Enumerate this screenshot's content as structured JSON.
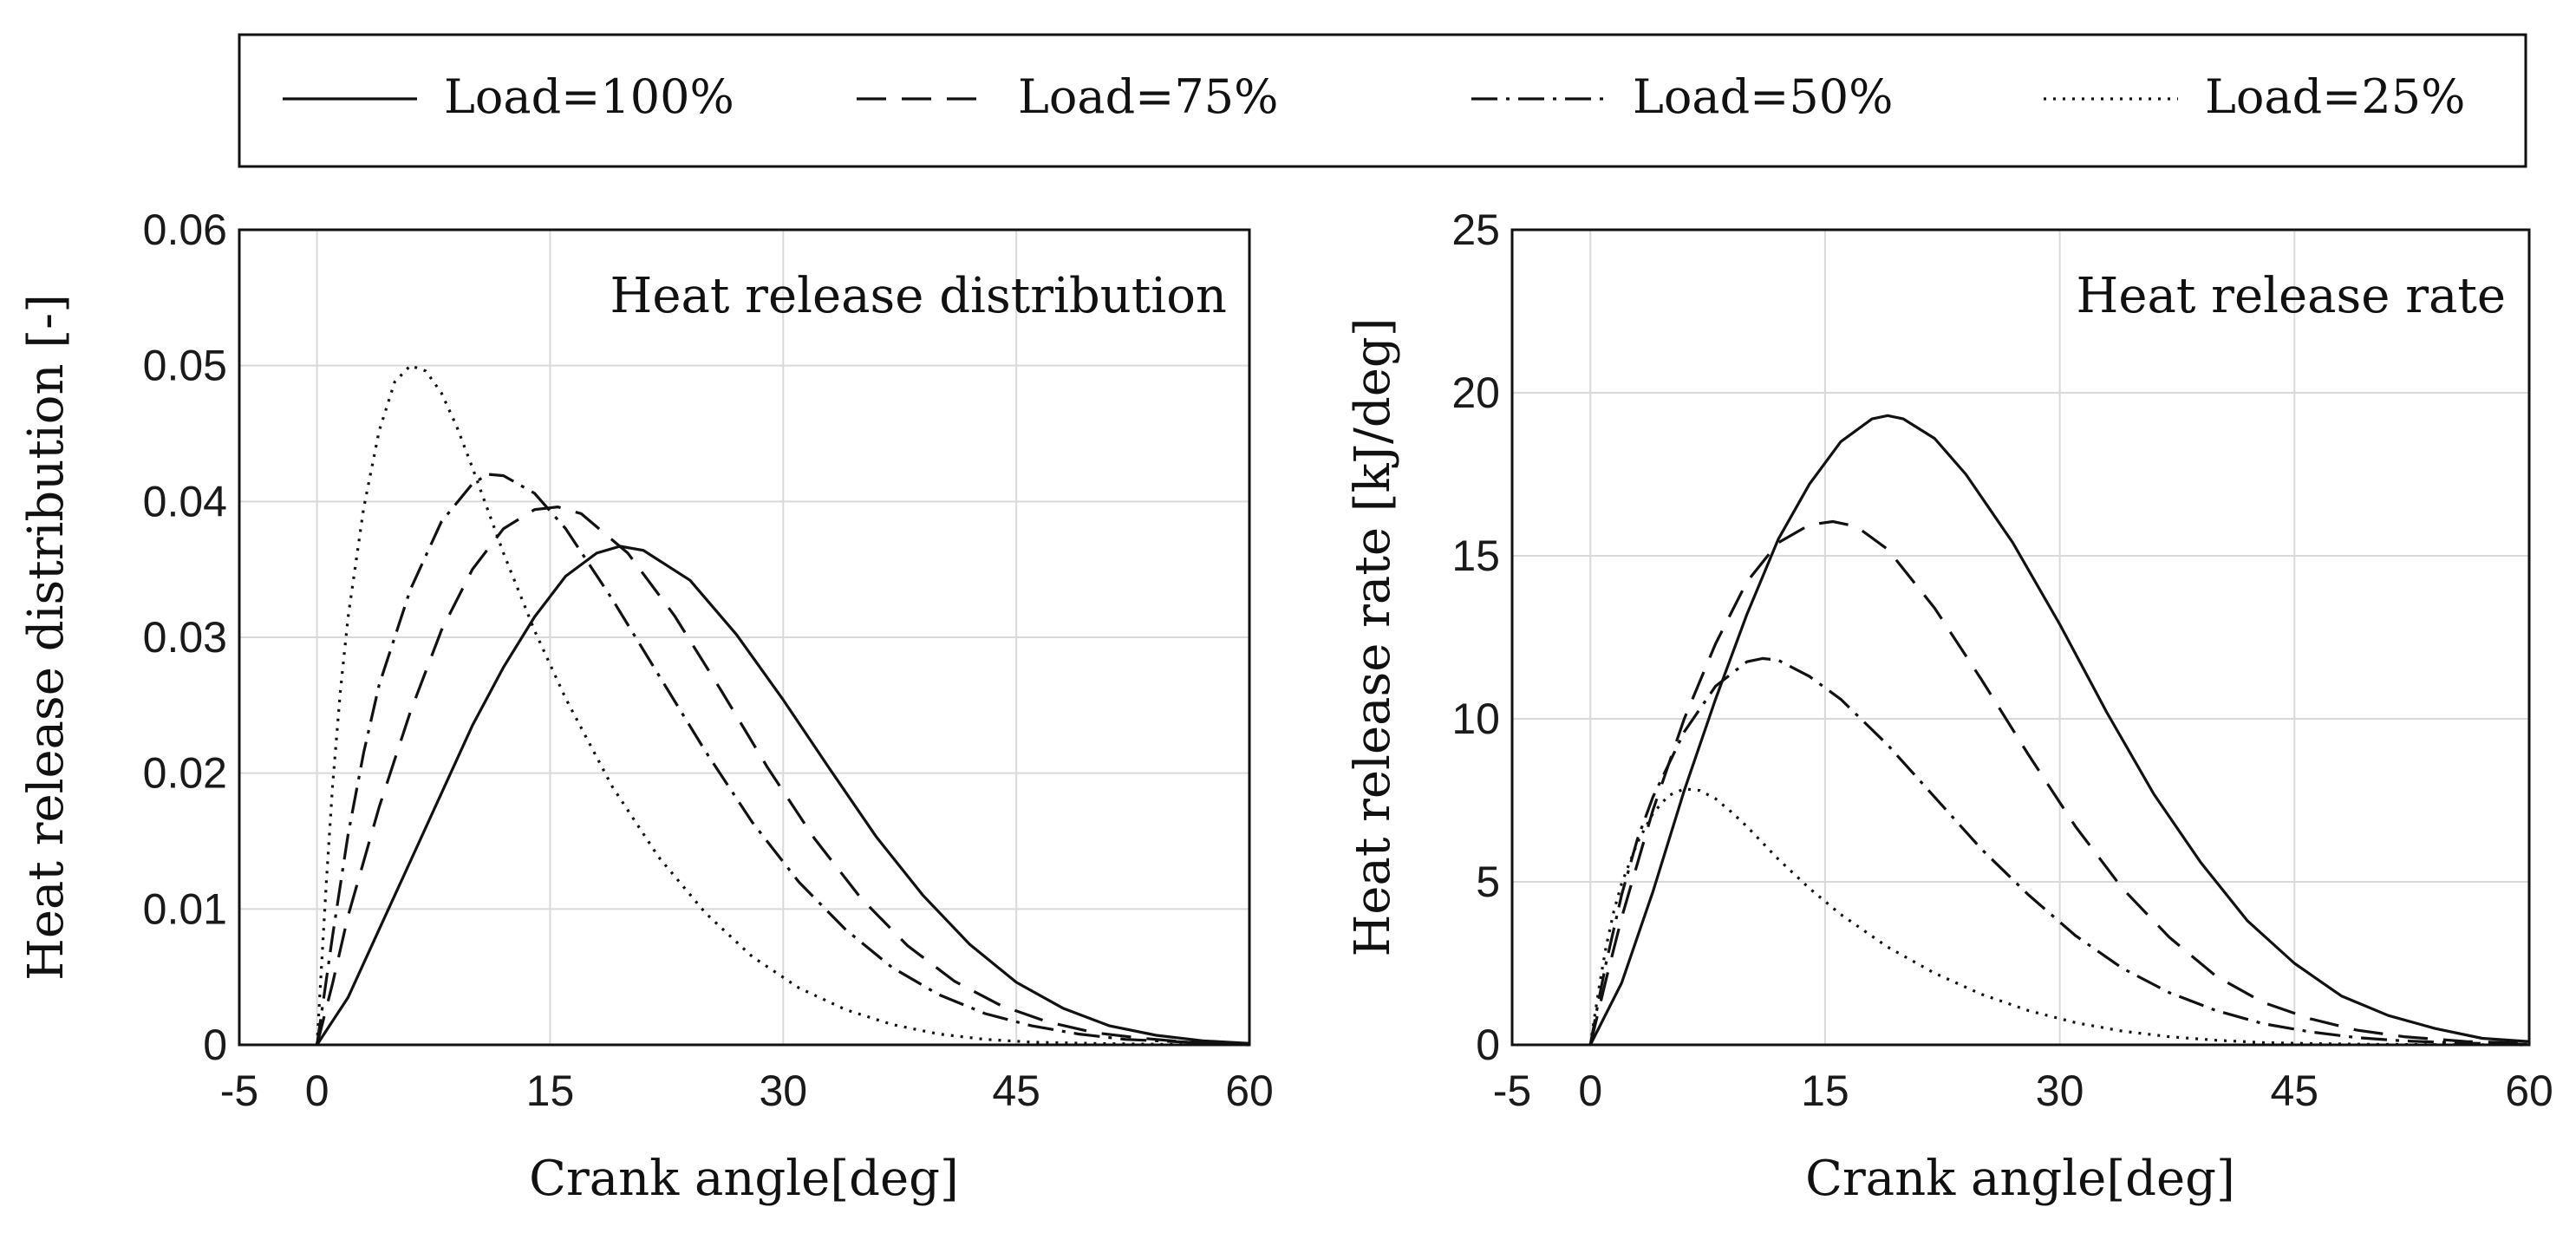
{
  "legend": {
    "entries": [
      {
        "label": "Load=100%",
        "style": "solid"
      },
      {
        "label": "Load=75%",
        "style": "dashed"
      },
      {
        "label": "Load=50%",
        "style": "dashdot"
      },
      {
        "label": "Load=25%",
        "style": "dotted"
      }
    ]
  },
  "colors": {
    "line": "#111111",
    "grid": "#d9d9d9",
    "background": "#ffffff"
  },
  "chart_data": [
    {
      "type": "line",
      "title": "Heat release distribution",
      "xlabel": "Crank angle[deg]",
      "ylabel": "Heat release distribution [-]",
      "xlim": [
        -5,
        60
      ],
      "ylim": [
        0,
        0.06
      ],
      "xticks": [
        -5,
        0,
        15,
        30,
        45,
        60
      ],
      "xtick_labels": [
        "-5",
        "0",
        "15",
        "30",
        "45",
        "60"
      ],
      "yticks": [
        0,
        0.01,
        0.02,
        0.03,
        0.04,
        0.05,
        0.06
      ],
      "ytick_labels": [
        "0",
        "0.01",
        "0.02",
        "0.03",
        "0.04",
        "0.05",
        "0.06"
      ],
      "grid": true,
      "series": [
        {
          "name": "Load=100%",
          "style": "solid",
          "x": [
            0,
            2,
            4,
            6,
            8,
            10,
            12,
            14,
            16,
            18,
            19.5,
            21,
            24,
            27,
            30,
            33,
            36,
            39,
            42,
            45,
            48,
            51,
            54,
            57,
            60
          ],
          "y": [
            0,
            0.0035,
            0.0085,
            0.0135,
            0.0185,
            0.0235,
            0.0278,
            0.0315,
            0.0345,
            0.0362,
            0.0367,
            0.0364,
            0.0342,
            0.0302,
            0.0254,
            0.0203,
            0.0153,
            0.011,
            0.0074,
            0.0046,
            0.0027,
            0.0014,
            0.0007,
            0.0003,
            0.0001
          ]
        },
        {
          "name": "Load=75%",
          "style": "dashed",
          "x": [
            0,
            1,
            2,
            4,
            6,
            8,
            10,
            12,
            14,
            15.5,
            17,
            20,
            23,
            26,
            29,
            32,
            35,
            38,
            41,
            44,
            47,
            50,
            53,
            56,
            60
          ],
          "y": [
            0,
            0.0045,
            0.0095,
            0.0175,
            0.0245,
            0.0305,
            0.035,
            0.038,
            0.0394,
            0.0396,
            0.0391,
            0.0362,
            0.0316,
            0.0261,
            0.0204,
            0.0152,
            0.0108,
            0.0073,
            0.0047,
            0.0029,
            0.0017,
            0.0009,
            0.0005,
            0.0002,
            0.0001
          ]
        },
        {
          "name": "Load=50%",
          "style": "dashdot",
          "x": [
            0,
            0.5,
            1,
            2,
            3,
            4,
            6,
            8,
            10,
            11,
            12,
            14,
            16,
            19,
            22,
            25,
            28,
            31,
            34,
            37,
            40,
            43,
            46,
            49,
            52,
            56,
            60
          ],
          "y": [
            0,
            0.004,
            0.008,
            0.0155,
            0.0215,
            0.0265,
            0.0335,
            0.0385,
            0.0413,
            0.042,
            0.0419,
            0.0406,
            0.038,
            0.0328,
            0.0272,
            0.0216,
            0.0164,
            0.012,
            0.0085,
            0.0057,
            0.0037,
            0.0023,
            0.0014,
            0.0008,
            0.0004,
            0.0002,
            0.0001
          ]
        },
        {
          "name": "Load=25%",
          "style": "dotted",
          "x": [
            0,
            0.3,
            0.6,
            1,
            1.5,
            2,
            3,
            4,
            5,
            6,
            7,
            8,
            9,
            10,
            12,
            14,
            16,
            19,
            22,
            25,
            28,
            31,
            34,
            37,
            40,
            43,
            46,
            50,
            55,
            60
          ],
          "y": [
            0,
            0.006,
            0.012,
            0.019,
            0.026,
            0.0315,
            0.0395,
            0.0452,
            0.0488,
            0.05,
            0.0496,
            0.048,
            0.0455,
            0.0425,
            0.0362,
            0.0305,
            0.0255,
            0.019,
            0.0138,
            0.0097,
            0.0065,
            0.0042,
            0.0026,
            0.0015,
            0.0008,
            0.0004,
            0.0002,
            0.0001,
            3e-05,
            0
          ]
        }
      ]
    },
    {
      "type": "line",
      "title": "Heat release rate",
      "xlabel": "Crank angle[deg]",
      "ylabel": "Heat release rate [kJ/deg]",
      "xlim": [
        -5,
        60
      ],
      "ylim": [
        0,
        25
      ],
      "xticks": [
        -5,
        0,
        15,
        30,
        45,
        60
      ],
      "xtick_labels": [
        "-5",
        "0",
        "15",
        "30",
        "45",
        "60"
      ],
      "yticks": [
        0,
        5,
        10,
        15,
        20,
        25
      ],
      "ytick_labels": [
        "0",
        "5",
        "10",
        "15",
        "20",
        "25"
      ],
      "grid": true,
      "series": [
        {
          "name": "Load=100%",
          "style": "solid",
          "x": [
            0,
            2,
            4,
            6,
            8,
            10,
            12,
            14,
            16,
            18,
            19,
            20,
            22,
            24,
            27,
            30,
            33,
            36,
            39,
            42,
            45,
            48,
            51,
            54,
            57,
            60
          ],
          "y": [
            0,
            1.9,
            4.7,
            7.8,
            10.6,
            13.2,
            15.5,
            17.2,
            18.5,
            19.2,
            19.3,
            19.2,
            18.6,
            17.5,
            15.4,
            12.9,
            10.2,
            7.7,
            5.6,
            3.8,
            2.5,
            1.5,
            0.9,
            0.5,
            0.2,
            0.1
          ]
        },
        {
          "name": "Load=75%",
          "style": "dashed",
          "x": [
            0,
            1,
            2,
            4,
            6,
            8,
            10,
            12,
            14,
            15.5,
            17,
            19,
            22,
            25,
            28,
            31,
            34,
            37,
            40,
            43,
            46,
            49,
            52,
            56,
            60
          ],
          "y": [
            0,
            2.0,
            3.9,
            7.2,
            10.0,
            12.3,
            14.2,
            15.4,
            15.95,
            16.05,
            15.9,
            15.2,
            13.4,
            11.2,
            8.9,
            6.7,
            4.8,
            3.3,
            2.1,
            1.3,
            0.8,
            0.45,
            0.25,
            0.1,
            0.05
          ]
        },
        {
          "name": "Load=50%",
          "style": "dashdot",
          "x": [
            0,
            0.5,
            1,
            2,
            3,
            4,
            6,
            8,
            10,
            11,
            12,
            14,
            16,
            19,
            22,
            25,
            28,
            31,
            34,
            37,
            40,
            43,
            46,
            49,
            52,
            56,
            60
          ],
          "y": [
            0,
            1.3,
            2.5,
            4.6,
            6.3,
            7.6,
            9.6,
            11.0,
            11.75,
            11.85,
            11.8,
            11.3,
            10.6,
            9.2,
            7.6,
            6.0,
            4.6,
            3.35,
            2.35,
            1.6,
            1.05,
            0.65,
            0.4,
            0.22,
            0.12,
            0.05,
            0.02
          ]
        },
        {
          "name": "Load=25%",
          "style": "dotted",
          "x": [
            0,
            0.3,
            0.6,
            1,
            1.5,
            2,
            3,
            4,
            5,
            6,
            7,
            8,
            9,
            10,
            12,
            14,
            16,
            19,
            22,
            25,
            28,
            31,
            34,
            37,
            40,
            43,
            46,
            50,
            55,
            60
          ],
          "y": [
            0,
            0.95,
            1.9,
            3.0,
            4.1,
            4.95,
            6.2,
            7.1,
            7.65,
            7.85,
            7.8,
            7.55,
            7.15,
            6.7,
            5.7,
            4.8,
            4.0,
            3.0,
            2.2,
            1.55,
            1.05,
            0.68,
            0.42,
            0.25,
            0.14,
            0.07,
            0.04,
            0.015,
            0.005,
            0
          ]
        }
      ]
    }
  ]
}
